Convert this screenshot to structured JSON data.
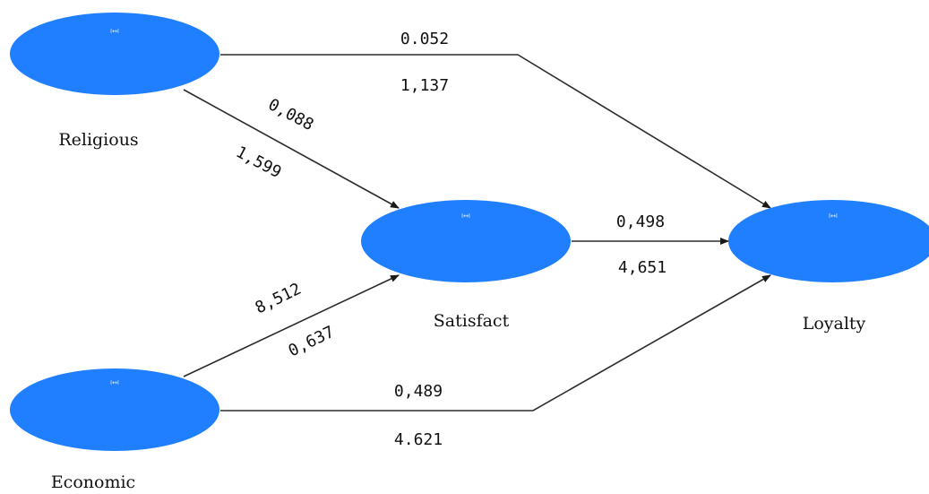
{
  "nodes": {
    "religious": {
      "label": "Religious",
      "icon": "indicator-icon",
      "color": "#1f7fff"
    },
    "economic": {
      "label": "Economic",
      "icon": "indicator-icon",
      "color": "#1f7fff"
    },
    "satisfaction": {
      "label": "Satisfact",
      "icon": "indicator-icon",
      "color": "#1f7fff"
    },
    "loyalty": {
      "label": "Loyalty",
      "icon": "indicator-icon",
      "color": "#1f7fff"
    }
  },
  "edges": {
    "religious_loyalty": {
      "coefficient": "0.052",
      "t_value": "1,137"
    },
    "religious_satisfaction": {
      "coefficient": "0,088",
      "t_value": "1,599"
    },
    "satisfaction_loyalty": {
      "coefficient": "0,498",
      "t_value": "4,651"
    },
    "economic_satisfaction": {
      "coefficient": "8,512",
      "t_value": "0,637"
    },
    "economic_loyalty": {
      "coefficient": "0,489",
      "t_value": "4.621"
    }
  },
  "icon_glyph": "I↔I"
}
